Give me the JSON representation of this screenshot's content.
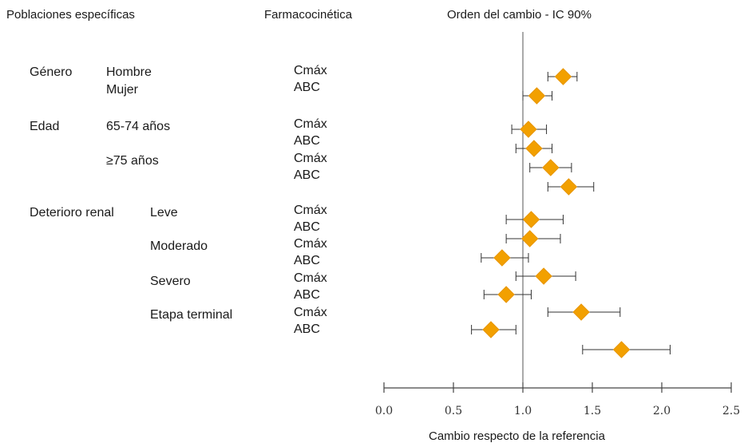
{
  "headers": {
    "populations": "Poblaciones específicas",
    "pk": "Farmacocinética",
    "ratio": "Orden del cambio - IC 90%"
  },
  "groups": {
    "gender": "Género",
    "male": "Hombre",
    "female": "Mujer",
    "age": "Edad",
    "age1": "65-74 años",
    "age2": "≥75 años",
    "renal": "Deterioro renal",
    "mild": "Leve",
    "moderate": "Moderado",
    "severe": "Severo",
    "endstage": "Etapa terminal"
  },
  "pk_labels": {
    "cmax": "Cmáx",
    "auc": "ABC"
  },
  "colors": {
    "marker": "#f2a000",
    "axis": "#444444"
  },
  "chart_data": {
    "type": "scatter",
    "title": "Orden del cambio - IC 90%",
    "xlabel": "Cambio respecto de la referencia",
    "xlim": [
      0.0,
      2.5
    ],
    "xticks": [
      "0.0",
      "0.5",
      "1.0",
      "1.5",
      "2.0",
      "2.5"
    ],
    "reference_line": 1.0,
    "points": [
      {
        "row": "Hombre Cmáx",
        "value": 1.29,
        "low": 1.18,
        "high": 1.39
      },
      {
        "row": "Hombre ABC",
        "value": 1.1,
        "low": 1.0,
        "high": 1.21
      },
      {
        "row": "65-74 años Cmáx",
        "value": 1.04,
        "low": 0.92,
        "high": 1.17
      },
      {
        "row": "65-74 años ABC",
        "value": 1.08,
        "low": 0.95,
        "high": 1.21
      },
      {
        "row": "≥75 años Cmáx",
        "value": 1.2,
        "low": 1.05,
        "high": 1.35
      },
      {
        "row": "≥75 años ABC",
        "value": 1.33,
        "low": 1.18,
        "high": 1.51
      },
      {
        "row": "Leve Cmáx",
        "value": 1.06,
        "low": 0.88,
        "high": 1.29
      },
      {
        "row": "Leve ABC",
        "value": 1.05,
        "low": 0.88,
        "high": 1.27
      },
      {
        "row": "Moderado Cmáx",
        "value": 0.85,
        "low": 0.7,
        "high": 1.04
      },
      {
        "row": "Moderado ABC",
        "value": 1.15,
        "low": 0.95,
        "high": 1.38
      },
      {
        "row": "Severo Cmáx",
        "value": 0.88,
        "low": 0.72,
        "high": 1.06
      },
      {
        "row": "Severo ABC",
        "value": 1.42,
        "low": 1.18,
        "high": 1.7
      },
      {
        "row": "Etapa terminal Cmáx",
        "value": 0.77,
        "low": 0.63,
        "high": 0.95
      },
      {
        "row": "Etapa terminal ABC",
        "value": 1.71,
        "low": 1.43,
        "high": 2.06
      }
    ]
  }
}
